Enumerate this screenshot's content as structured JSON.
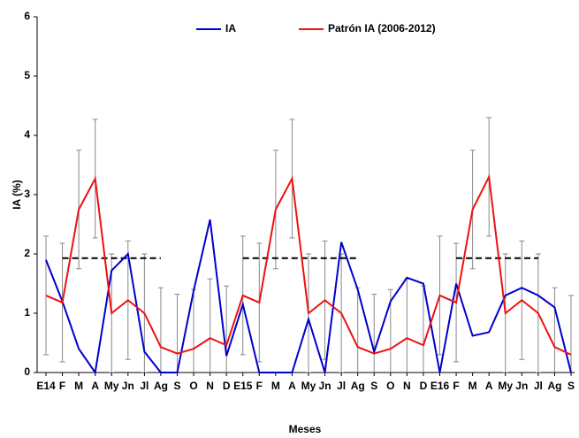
{
  "chart_data": {
    "type": "line",
    "x_label": "Meses",
    "y_label": "IA (%)",
    "categories": [
      "E14",
      "F",
      "M",
      "A",
      "My",
      "Jn",
      "Jl",
      "Ag",
      "S",
      "O",
      "N",
      "D",
      "E15",
      "F",
      "M",
      "A",
      "My",
      "Jn",
      "Jl",
      "Ag",
      "S",
      "O",
      "N",
      "D",
      "E16",
      "F",
      "M",
      "A",
      "My",
      "Jn",
      "Jl",
      "Ag",
      "S"
    ],
    "ylim": [
      0,
      6
    ],
    "yticks": [
      0,
      1,
      2,
      3,
      4,
      5,
      6
    ],
    "series": [
      {
        "name": "IA",
        "color": "#0000cc",
        "values": [
          1.9,
          1.2,
          0.4,
          0,
          1.72,
          2.0,
          0.35,
          0,
          0,
          1.38,
          2.58,
          0.28,
          1.15,
          0,
          0,
          0,
          0.9,
          0,
          2.2,
          1.4,
          0.35,
          1.2,
          1.6,
          1.5,
          0,
          1.5,
          0.62,
          0.68,
          1.3,
          1.43,
          1.3,
          1.1,
          0
        ]
      },
      {
        "name": "Patrón IA (2006-2012)",
        "color": "#ee1111",
        "values": [
          1.3,
          1.18,
          2.75,
          3.27,
          1.0,
          1.22,
          1.0,
          0.43,
          0.32,
          0.4,
          0.58,
          0.46,
          1.3,
          1.18,
          2.75,
          3.27,
          1.0,
          1.22,
          1.0,
          0.43,
          0.32,
          0.4,
          0.58,
          0.46,
          1.3,
          1.18,
          2.75,
          3.3,
          1.0,
          1.22,
          1.0,
          0.43,
          0.3
        ],
        "errors": [
          1.0,
          1.0,
          1.0,
          1.0,
          1.0,
          1.0,
          1.0,
          1.0,
          1.0,
          1.0,
          1.0,
          1.0,
          1.0,
          1.0,
          1.0,
          1.0,
          1.0,
          1.0,
          1.0,
          1.0,
          1.0,
          1.0,
          1.0,
          1.0,
          1.0,
          1.0,
          1.0,
          1.0,
          1.0,
          1.0,
          1.0,
          1.0,
          1.0
        ]
      }
    ],
    "reference_lines": [
      {
        "y": 1.93,
        "start": 1,
        "end": 7
      },
      {
        "y": 1.93,
        "start": 12,
        "end": 19
      },
      {
        "y": 1.93,
        "start": 25,
        "end": 30
      }
    ]
  }
}
